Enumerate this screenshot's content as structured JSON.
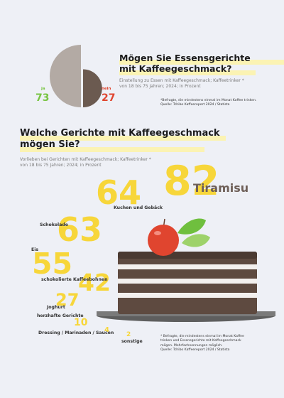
{
  "colors": {
    "background": "#eef0f6",
    "highlight": "#fbf3b3",
    "yes": "#78c442",
    "no": "#e0452f",
    "pie_light": "#b3aaa4",
    "pie_dark": "#6b5a50",
    "number": "#f7d63a"
  },
  "section1": {
    "title": "Mögen Sie Essensgerichte mit Kaffeegeschmack?",
    "title_line1": "Mögen Sie Essensgerichte",
    "title_line2": "mit Kaffeegeschmack?",
    "subtitle_line1": "Einstellung zu Essen mit Kaffeegeschmack; Kaffeetrinker *",
    "subtitle_line2": "von 18 bis 75 Jahren; 2024; in Prozent",
    "note_line1": "*Befragte, die mindestens einmal im Monat Kaffee trinken.",
    "note_line2": "Quelle: Tchibo Kaffeereport 2024 / Statista"
  },
  "section2": {
    "title": "Welche Gerichte mit Kaffeegeschmack mögen Sie?",
    "title_line1": "Welche Gerichte mit Kaffeegeschmack",
    "title_line2": "mögen Sie?",
    "subtitle_line1": "Vorlieben bei Gerichten mit Kaffeegeschmack; Kaffeetrinker *",
    "subtitle_line2": "von 18 bis 75 Jahren; 2024; in Prozent",
    "note_line1": "* Befragte, die mindestens einmal im Monat Kaffee",
    "note_line2": "trinken und Essensgerichte mit Kaffeegeschmack",
    "note_line3": "mögen. Mehrfachnennungen möglich.",
    "note_line4": "Quelle: Tchibo Kaffeereport 2024 / Statista"
  },
  "chart_data": [
    {
      "type": "pie",
      "title": "Mögen Sie Essensgerichte mit Kaffeegeschmack?",
      "categories": [
        "ja",
        "nein"
      ],
      "values": [
        73,
        27
      ],
      "unit": "Prozent"
    },
    {
      "type": "bar",
      "title": "Welche Gerichte mit Kaffeegeschmack mögen Sie?",
      "categories": [
        "Tiramisu",
        "Kuchen und Gebäck",
        "Schokolade",
        "Eis",
        "schokolierte Kaffeebohnen",
        "Joghurt",
        "herzhafte Gerichte",
        "Dressing / Marinaden / Saucen",
        "sonstige"
      ],
      "values": [
        82,
        64,
        63,
        55,
        42,
        27,
        10,
        4,
        2
      ],
      "unit": "Prozent"
    }
  ]
}
